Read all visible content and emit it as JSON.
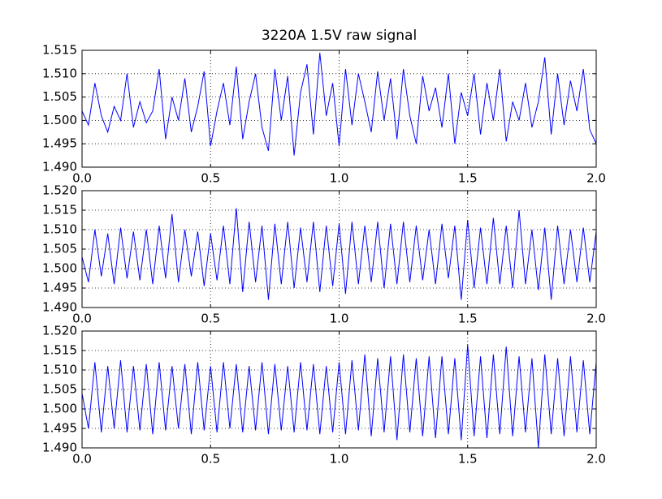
{
  "chart_data": [
    {
      "type": "line",
      "title": "3220A 1.5V raw signal",
      "grid": true,
      "xlim": [
        0,
        2
      ],
      "xticks": [
        {
          "value": 0,
          "label": "0.0"
        },
        0.5,
        {
          "value": 1,
          "label": "1.0"
        },
        1.5,
        {
          "value": 2,
          "label": "2.0"
        }
      ],
      "ylim": [
        1.49,
        1.515
      ],
      "yticks": [
        {
          "value": 1.49,
          "label": "1.490"
        },
        1.495,
        {
          "value": 1.5,
          "label": "1.500"
        },
        1.505,
        {
          "value": 1.51,
          "label": "1.510"
        },
        1.515
      ],
      "x": [
        0,
        0.025,
        0.05,
        0.075,
        0.1,
        0.125,
        0.15,
        0.175,
        0.2,
        0.225,
        0.25,
        0.275,
        0.3,
        0.325,
        0.35,
        0.375,
        0.4,
        0.425,
        0.45,
        0.475,
        0.5,
        0.525,
        0.55,
        0.575,
        0.6,
        0.625,
        0.65,
        0.675,
        0.7,
        0.725,
        0.75,
        0.775,
        0.8,
        0.825,
        0.85,
        0.875,
        0.9,
        0.925,
        0.95,
        0.975,
        1,
        1.025,
        1.05,
        1.075,
        1.1,
        1.125,
        1.15,
        1.175,
        1.2,
        1.225,
        1.25,
        1.275,
        1.3,
        1.325,
        1.35,
        1.375,
        1.4,
        1.425,
        1.45,
        1.475,
        1.5,
        1.525,
        1.55,
        1.575,
        1.6,
        1.625,
        1.65,
        1.675,
        1.7,
        1.725,
        1.75,
        1.775,
        1.8,
        1.825,
        1.85,
        1.875,
        1.9,
        1.925,
        1.95,
        1.975,
        2
      ],
      "series": [
        {
          "color": "#0000ff",
          "values": [
            1.502,
            1.499,
            1.508,
            1.501,
            1.4975,
            1.503,
            1.5,
            1.51,
            1.4985,
            1.504,
            1.4995,
            1.502,
            1.511,
            1.496,
            1.505,
            1.5,
            1.509,
            1.4975,
            1.503,
            1.5105,
            1.4945,
            1.502,
            1.508,
            1.499,
            1.5115,
            1.496,
            1.504,
            1.51,
            1.4985,
            1.4935,
            1.511,
            1.5,
            1.5095,
            1.4925,
            1.506,
            1.512,
            1.497,
            1.5145,
            1.501,
            1.508,
            1.4945,
            1.511,
            1.499,
            1.51,
            1.504,
            1.4975,
            1.5105,
            1.5,
            1.509,
            1.496,
            1.511,
            1.501,
            1.495,
            1.5095,
            1.502,
            1.507,
            1.4985,
            1.51,
            1.495,
            1.506,
            1.501,
            1.51,
            1.497,
            1.508,
            1.5,
            1.511,
            1.4955,
            1.504,
            1.5,
            1.508,
            1.4985,
            1.504,
            1.5135,
            1.497,
            1.51,
            1.499,
            1.5085,
            1.502,
            1.511,
            1.498,
            1.495
          ]
        }
      ]
    },
    {
      "type": "line",
      "grid": true,
      "xlim": [
        0,
        2
      ],
      "xticks": [
        {
          "value": 0,
          "label": "0.0"
        },
        0.5,
        {
          "value": 1,
          "label": "1.0"
        },
        1.5,
        {
          "value": 2,
          "label": "2.0"
        }
      ],
      "ylim": [
        1.49,
        1.52
      ],
      "yticks": [
        {
          "value": 1.49,
          "label": "1.490"
        },
        1.495,
        {
          "value": 1.5,
          "label": "1.500"
        },
        1.505,
        {
          "value": 1.51,
          "label": "1.510"
        },
        1.515,
        {
          "value": 1.52,
          "label": "1.520"
        }
      ],
      "x": [
        0,
        0.025,
        0.05,
        0.075,
        0.1,
        0.125,
        0.15,
        0.175,
        0.2,
        0.225,
        0.25,
        0.275,
        0.3,
        0.325,
        0.35,
        0.375,
        0.4,
        0.425,
        0.45,
        0.475,
        0.5,
        0.525,
        0.55,
        0.575,
        0.6,
        0.625,
        0.65,
        0.675,
        0.7,
        0.725,
        0.75,
        0.775,
        0.8,
        0.825,
        0.85,
        0.875,
        0.9,
        0.925,
        0.95,
        0.975,
        1,
        1.025,
        1.05,
        1.075,
        1.1,
        1.125,
        1.15,
        1.175,
        1.2,
        1.225,
        1.25,
        1.275,
        1.3,
        1.325,
        1.35,
        1.375,
        1.4,
        1.425,
        1.45,
        1.475,
        1.5,
        1.525,
        1.55,
        1.575,
        1.6,
        1.625,
        1.65,
        1.675,
        1.7,
        1.725,
        1.75,
        1.775,
        1.8,
        1.825,
        1.85,
        1.875,
        1.9,
        1.925,
        1.95,
        1.975,
        2
      ],
      "series": [
        {
          "color": "#0000ff",
          "values": [
            1.503,
            1.4965,
            1.51,
            1.498,
            1.509,
            1.496,
            1.5105,
            1.4975,
            1.5095,
            1.497,
            1.51,
            1.496,
            1.511,
            1.4975,
            1.514,
            1.4965,
            1.51,
            1.498,
            1.5095,
            1.4955,
            1.509,
            1.497,
            1.511,
            1.496,
            1.5155,
            1.494,
            1.512,
            1.4965,
            1.511,
            1.492,
            1.5115,
            1.496,
            1.512,
            1.495,
            1.5105,
            1.4965,
            1.512,
            1.494,
            1.511,
            1.4955,
            1.5115,
            1.4935,
            1.512,
            1.496,
            1.511,
            1.4965,
            1.512,
            1.495,
            1.5115,
            1.496,
            1.512,
            1.4965,
            1.511,
            1.497,
            1.51,
            1.496,
            1.5115,
            1.4975,
            1.511,
            1.492,
            1.5125,
            1.495,
            1.5105,
            1.496,
            1.513,
            1.496,
            1.511,
            1.495,
            1.515,
            1.496,
            1.51,
            1.4945,
            1.5105,
            1.492,
            1.511,
            1.496,
            1.51,
            1.4965,
            1.5105,
            1.4965,
            1.5095
          ]
        }
      ]
    },
    {
      "type": "line",
      "grid": true,
      "xlim": [
        0,
        2
      ],
      "xticks": [
        {
          "value": 0,
          "label": "0.0"
        },
        0.5,
        {
          "value": 1,
          "label": "1.0"
        },
        1.5,
        {
          "value": 2,
          "label": "2.0"
        }
      ],
      "ylim": [
        1.49,
        1.52
      ],
      "yticks": [
        {
          "value": 1.49,
          "label": "1.490"
        },
        1.495,
        {
          "value": 1.5,
          "label": "1.500"
        },
        1.505,
        {
          "value": 1.51,
          "label": "1.510"
        },
        1.515,
        {
          "value": 1.52,
          "label": "1.520"
        }
      ],
      "x": [
        0,
        0.025,
        0.05,
        0.075,
        0.1,
        0.125,
        0.15,
        0.175,
        0.2,
        0.225,
        0.25,
        0.275,
        0.3,
        0.325,
        0.35,
        0.375,
        0.4,
        0.425,
        0.45,
        0.475,
        0.5,
        0.525,
        0.55,
        0.575,
        0.6,
        0.625,
        0.65,
        0.675,
        0.7,
        0.725,
        0.75,
        0.775,
        0.8,
        0.825,
        0.85,
        0.875,
        0.9,
        0.925,
        0.95,
        0.975,
        1,
        1.025,
        1.05,
        1.075,
        1.1,
        1.125,
        1.15,
        1.175,
        1.2,
        1.225,
        1.25,
        1.275,
        1.3,
        1.325,
        1.35,
        1.375,
        1.4,
        1.425,
        1.45,
        1.475,
        1.5,
        1.525,
        1.55,
        1.575,
        1.6,
        1.625,
        1.65,
        1.675,
        1.7,
        1.725,
        1.75,
        1.775,
        1.8,
        1.825,
        1.85,
        1.875,
        1.9,
        1.925,
        1.95,
        1.975,
        2
      ],
      "series": [
        {
          "color": "#0000ff",
          "values": [
            1.504,
            1.495,
            1.512,
            1.494,
            1.511,
            1.495,
            1.5125,
            1.494,
            1.511,
            1.4945,
            1.5115,
            1.4935,
            1.512,
            1.4945,
            1.511,
            1.495,
            1.5115,
            1.4935,
            1.512,
            1.4945,
            1.511,
            1.494,
            1.512,
            1.495,
            1.5115,
            1.494,
            1.511,
            1.4945,
            1.512,
            1.4935,
            1.5115,
            1.4945,
            1.511,
            1.494,
            1.512,
            1.4945,
            1.5115,
            1.4935,
            1.511,
            1.494,
            1.512,
            1.4935,
            1.5125,
            1.4945,
            1.514,
            1.493,
            1.513,
            1.494,
            1.5135,
            1.492,
            1.514,
            1.494,
            1.513,
            1.493,
            1.5135,
            1.4925,
            1.5135,
            1.4935,
            1.513,
            1.492,
            1.5165,
            1.493,
            1.5135,
            1.4925,
            1.514,
            1.4935,
            1.516,
            1.493,
            1.5135,
            1.494,
            1.513,
            1.49,
            1.514,
            1.4935,
            1.513,
            1.493,
            1.5135,
            1.494,
            1.5125,
            1.4935,
            1.512
          ]
        }
      ]
    }
  ]
}
